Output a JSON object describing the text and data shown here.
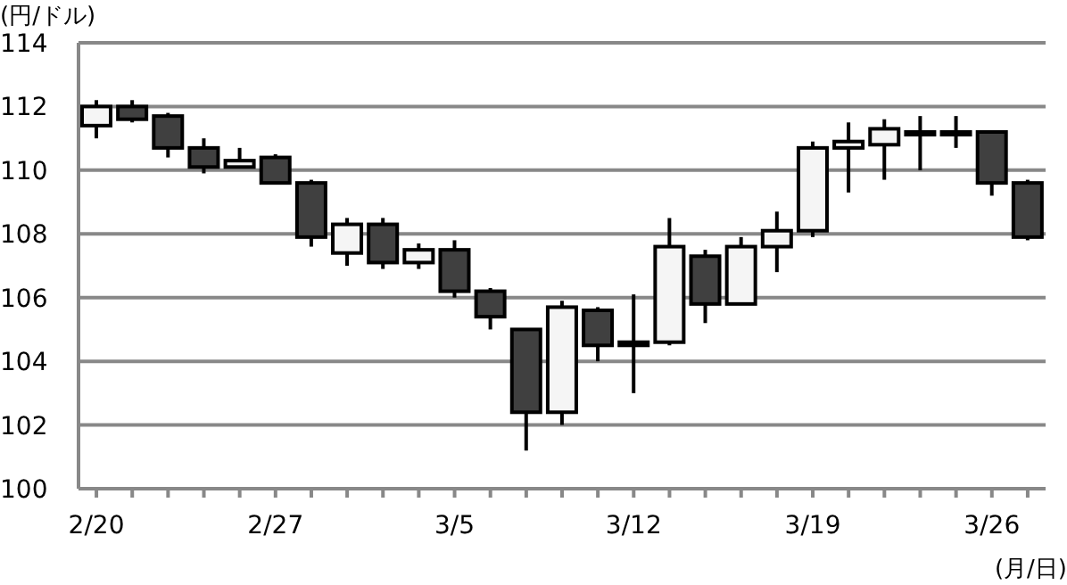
{
  "chart_data": {
    "type": "candlestick",
    "ylabel": "(円/ドル)",
    "xlabel": "(月/日)",
    "categories": [
      "2/20",
      null,
      null,
      null,
      null,
      "2/27",
      null,
      null,
      null,
      null,
      "3/5",
      null,
      null,
      null,
      null,
      "3/12",
      null,
      null,
      null,
      null,
      "3/19",
      null,
      null,
      null,
      null,
      "3/26",
      null
    ],
    "ohlc": [
      [
        111.4,
        112.2,
        111.0,
        112.0
      ],
      [
        112.0,
        112.2,
        111.5,
        111.6
      ],
      [
        111.7,
        111.8,
        110.4,
        110.7
      ],
      [
        110.7,
        111.0,
        109.9,
        110.1
      ],
      [
        110.1,
        110.7,
        110.1,
        110.3
      ],
      [
        110.4,
        110.5,
        109.6,
        109.6
      ],
      [
        109.6,
        109.7,
        107.6,
        107.9
      ],
      [
        107.4,
        108.5,
        107.0,
        108.3
      ],
      [
        108.3,
        108.5,
        106.9,
        107.1
      ],
      [
        107.1,
        107.7,
        106.9,
        107.5
      ],
      [
        107.5,
        107.8,
        106.0,
        106.2
      ],
      [
        106.2,
        106.3,
        105.0,
        105.4
      ],
      [
        105.0,
        105.0,
        101.2,
        102.4
      ],
      [
        102.4,
        105.9,
        102.0,
        105.7
      ],
      [
        105.6,
        105.7,
        104.0,
        104.5
      ],
      [
        104.6,
        106.1,
        103.0,
        104.5
      ],
      [
        104.6,
        108.5,
        104.5,
        107.6
      ],
      [
        107.3,
        107.5,
        105.2,
        105.8
      ],
      [
        105.8,
        107.9,
        105.8,
        107.6
      ],
      [
        107.6,
        108.7,
        106.8,
        108.1
      ],
      [
        108.1,
        110.9,
        107.9,
        110.7
      ],
      [
        110.7,
        111.5,
        109.3,
        110.9
      ],
      [
        110.8,
        111.6,
        109.7,
        111.3
      ],
      [
        111.2,
        111.7,
        110.0,
        111.2
      ],
      [
        111.2,
        111.7,
        110.7,
        111.2
      ],
      [
        111.2,
        111.2,
        109.2,
        109.6
      ],
      [
        109.6,
        109.7,
        107.8,
        107.9
      ]
    ],
    "colors": [
      "#f5f5f5",
      "#404040",
      "#404040",
      "#404040",
      "#f5f5f5",
      "#404040",
      "#404040",
      "#f5f5f5",
      "#404040",
      "#f5f5f5",
      "#404040",
      "#404040",
      "#404040",
      "#f5f5f5",
      "#404040",
      "#404040",
      "#f5f5f5",
      "#404040",
      "#f5f5f5",
      "#f5f5f5",
      "#f5f5f5",
      "#f5f5f5",
      "#f5f5f5",
      "#404040",
      "#404040",
      "#404040",
      "#404040"
    ],
    "ylim": [
      100,
      114
    ],
    "yticks": [
      100,
      102,
      104,
      106,
      108,
      110,
      112,
      114
    ],
    "grid": "y"
  }
}
